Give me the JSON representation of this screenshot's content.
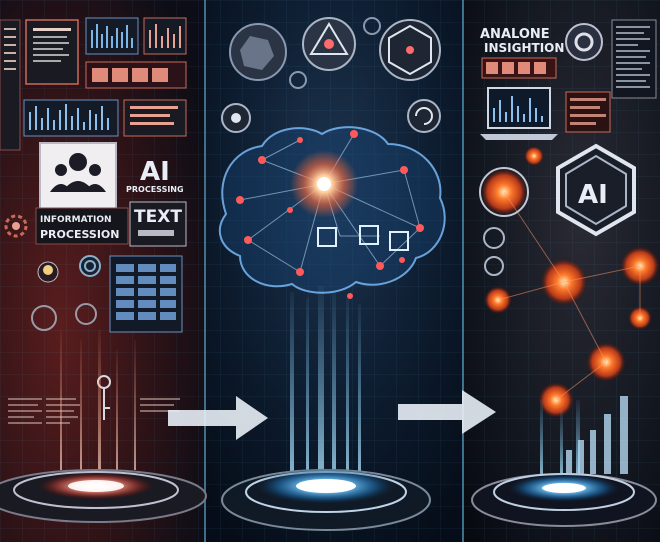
{
  "panels": {
    "left": {
      "ai_heading": "AI",
      "ai_subheading": "PROCESSING",
      "caption_line1": "INFORMATION",
      "caption_line2": "PROCESSION",
      "text_button": "TEXT"
    },
    "center": {},
    "right": {
      "heading_line1": "ANALONE",
      "heading_line2": "INSIGHTION",
      "hex_badge": "AI"
    }
  },
  "icons": [
    "user-group-icon",
    "document-icon",
    "lightbulb-icon",
    "key-icon",
    "gear-icon",
    "brain-network-icon",
    "hexagon-ai-icon",
    "laptop-chart-icon",
    "bar-chart-icon",
    "arrow-right-icon",
    "hologram-platform-icon"
  ],
  "colors": {
    "left_glow": "#c0392b",
    "center_glow": "#4aa8ff",
    "right_glow": "#ff7a2a",
    "background": "#06101c",
    "divider": "#5fb0d8"
  }
}
